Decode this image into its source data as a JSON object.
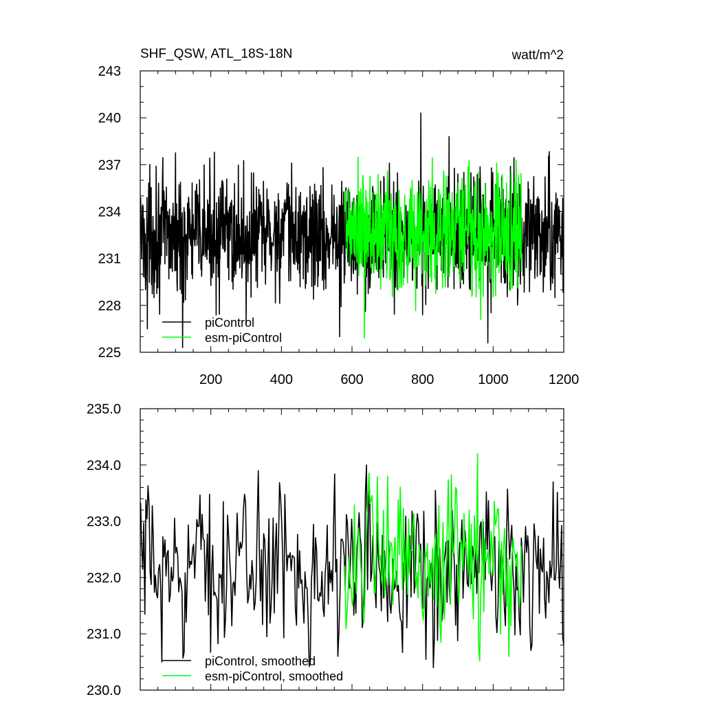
{
  "chart_data": [
    {
      "type": "line",
      "title": "SHF_QSW, ATL_18S-18N",
      "units": "watt/m^2",
      "xlabel": "",
      "ylabel": "",
      "xlim": [
        0,
        1200
      ],
      "ylim": [
        225,
        243
      ],
      "xticks": [
        200,
        400,
        600,
        800,
        1000,
        1200
      ],
      "xtick_labels": [
        "200",
        "400",
        "600",
        "800",
        "1000",
        "1200"
      ],
      "yticks": [
        225,
        228,
        231,
        234,
        237,
        240,
        243
      ],
      "ytick_labels": [
        "225",
        "228",
        "231",
        "234",
        "237",
        "240",
        "243"
      ],
      "legend_position": "lower-left",
      "series": [
        {
          "name": "piControl",
          "color": "#000000",
          "x_start": 1,
          "x_end": 1200,
          "n": 1200,
          "mean": 232.5,
          "spread": 1.9,
          "spikes": [
            [
              20,
              226.5
            ],
            [
              45,
              236.9
            ],
            [
              120,
              225.3
            ],
            [
              210,
              237.8
            ],
            [
              300,
              226.8
            ],
            [
              520,
              229.0
            ],
            [
              565,
              226.0
            ],
            [
              795,
              240.3
            ],
            [
              800,
              227.4
            ],
            [
              875,
              238.8
            ],
            [
              935,
              229.0
            ],
            [
              985,
              225.6
            ],
            [
              1175,
              228.5
            ]
          ]
        },
        {
          "name": "esm-piControl",
          "color": "#00ff00",
          "x_start": 580,
          "x_end": 1080,
          "n": 500,
          "mean": 232.6,
          "spread": 2.0,
          "spikes": [
            [
              635,
              225.9
            ],
            [
              700,
              236.6
            ],
            [
              860,
              236.6
            ],
            [
              965,
              227.1
            ],
            [
              1010,
              237.1
            ],
            [
              1065,
              237.3
            ]
          ]
        }
      ]
    },
    {
      "type": "line",
      "title": "",
      "xlabel": "",
      "ylabel": "",
      "xlim": [
        0,
        1200
      ],
      "ylim": [
        230.0,
        235.0
      ],
      "xticks": [
        200,
        400,
        600,
        800,
        1000,
        1200
      ],
      "yticks": [
        230.0,
        231.0,
        232.0,
        233.0,
        234.0,
        235.0
      ],
      "ytick_labels": [
        "230.0",
        "231.0",
        "232.0",
        "233.0",
        "234.0",
        "235.0"
      ],
      "legend_position": "lower-left",
      "series": [
        {
          "name": "piControl, smoothed",
          "color": "#000000",
          "x_start": 1,
          "x_end": 1200,
          "n": 400,
          "mean": 232.2,
          "spread": 0.75,
          "spikes": [
            [
              60,
              230.5
            ],
            [
              335,
              233.9
            ],
            [
              560,
              230.6
            ],
            [
              640,
              234.0
            ],
            [
              830,
              230.4
            ],
            [
              1170,
              233.7
            ],
            [
              1200,
              230.8
            ]
          ]
        },
        {
          "name": "esm-piControl, smoothed",
          "color": "#00ff00",
          "x_start": 580,
          "x_end": 1080,
          "n": 170,
          "mean": 232.3,
          "spread": 0.8,
          "spikes": [
            [
              700,
              233.8
            ],
            [
              955,
              234.2
            ],
            [
              1045,
              230.6
            ]
          ]
        }
      ]
    }
  ]
}
